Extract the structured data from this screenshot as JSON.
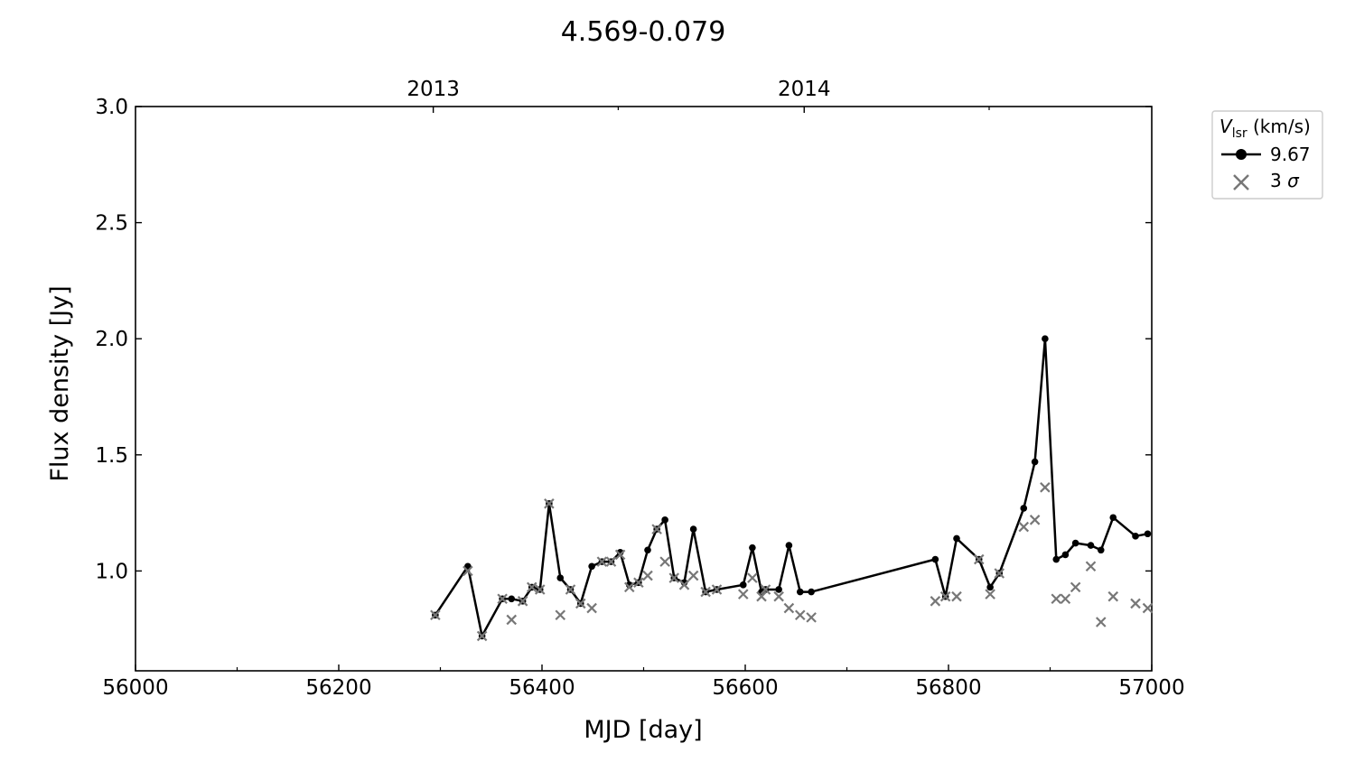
{
  "chart_data": {
    "type": "line",
    "title": "4.569-0.079",
    "xlabel": "MJD [day]",
    "ylabel": "Flux density [Jy]",
    "xlim": [
      56000,
      57000
    ],
    "ylim": [
      0.57,
      3.0
    ],
    "x_ticks": [
      56000,
      56200,
      56400,
      56600,
      56800,
      57000
    ],
    "x_minor_ticks": [
      56100,
      56300,
      56500,
      56700,
      56900
    ],
    "y_ticks": [
      1.0,
      1.5,
      2.0,
      2.5,
      3.0
    ],
    "y_tick_labels": [
      "1.0",
      "1.5",
      "2.0",
      "2.5",
      "3.0"
    ],
    "top_axis": {
      "ticks": [
        {
          "label": "2013",
          "mjd": 56293
        },
        {
          "label": "2014",
          "mjd": 56658
        }
      ],
      "minor_ticks": [
        56475,
        56840
      ]
    },
    "legend": {
      "title_italic": "V",
      "title_sub": "lsr",
      "title_rest": " (km/s)",
      "placement": "outside-top-right",
      "series_label": "9.67",
      "sigma_label_prefix": "3 ",
      "sigma_label_symbol": "σ"
    },
    "colors": {
      "series": "#000000",
      "sigma": "#777777"
    },
    "grid": false,
    "series": [
      {
        "name": "9.67",
        "marker": "circle",
        "x": [
          56295,
          56327,
          56341,
          56361,
          56370,
          56381,
          56390,
          56398,
          56407,
          56418,
          56428,
          56438,
          56449,
          56459,
          56468,
          56477,
          56486,
          56495,
          56504,
          56513,
          56521,
          56530,
          56540,
          56549,
          56561,
          56572,
          56598,
          56607,
          56616,
          56620,
          56633,
          56643,
          56654,
          56665,
          56787,
          56797,
          56808,
          56830,
          56841,
          56850,
          56874,
          56885,
          56895,
          56906,
          56915,
          56925,
          56940,
          56950,
          56962,
          56984,
          56996
        ],
        "values": [
          0.81,
          1.02,
          0.72,
          0.88,
          0.88,
          0.87,
          0.93,
          0.92,
          1.29,
          0.97,
          0.92,
          0.86,
          1.02,
          1.04,
          1.04,
          1.08,
          0.94,
          0.95,
          1.09,
          1.18,
          1.22,
          0.97,
          0.95,
          1.18,
          0.91,
          0.92,
          0.94,
          1.1,
          0.91,
          0.92,
          0.92,
          1.11,
          0.91,
          0.91,
          1.05,
          0.89,
          1.14,
          1.05,
          0.93,
          0.99,
          1.27,
          1.47,
          2.0,
          1.05,
          1.07,
          1.12,
          1.11,
          1.09,
          1.23,
          1.15,
          1.16
        ]
      },
      {
        "name": "3 σ",
        "marker": "x",
        "x": [
          56295,
          56327,
          56341,
          56361,
          56370,
          56381,
          56390,
          56398,
          56407,
          56418,
          56428,
          56438,
          56449,
          56459,
          56468,
          56477,
          56486,
          56495,
          56504,
          56513,
          56521,
          56530,
          56540,
          56549,
          56561,
          56572,
          56598,
          56607,
          56616,
          56620,
          56633,
          56643,
          56654,
          56665,
          56787,
          56797,
          56808,
          56830,
          56841,
          56850,
          56874,
          56885,
          56895,
          56906,
          56915,
          56925,
          56940,
          56950,
          56962,
          56984,
          56996
        ],
        "values": [
          0.81,
          1.0,
          0.72,
          0.88,
          0.79,
          0.87,
          0.93,
          0.92,
          1.29,
          0.81,
          0.92,
          0.86,
          0.84,
          1.04,
          1.04,
          1.07,
          0.93,
          0.95,
          0.98,
          1.18,
          1.04,
          0.97,
          0.94,
          0.98,
          0.91,
          0.92,
          0.9,
          0.97,
          0.89,
          0.92,
          0.89,
          0.84,
          0.81,
          0.8,
          0.87,
          0.89,
          0.89,
          1.05,
          0.9,
          0.99,
          1.19,
          1.22,
          1.36,
          0.88,
          0.88,
          0.93,
          1.02,
          0.78,
          0.89,
          0.86,
          0.84
        ]
      }
    ]
  }
}
